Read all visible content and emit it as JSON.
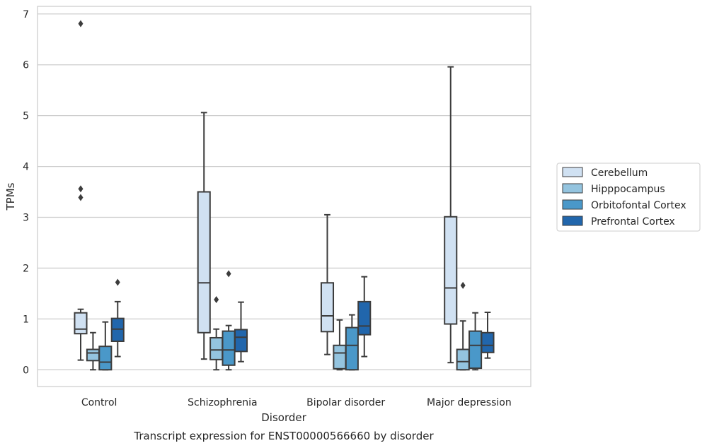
{
  "chart_data": {
    "type": "box",
    "xlabel": "Disorder",
    "ylabel": "TPMs",
    "caption": "Transcript expression for ENST00000566660 by disorder",
    "ylim": [
      -0.33,
      7.15
    ],
    "yticks": [
      0,
      1,
      2,
      3,
      4,
      5,
      6,
      7
    ],
    "grid": "horizontal",
    "legend_position": "right",
    "categories": [
      "Control",
      "Schizophrenia",
      "Bipolar disorder",
      "Major depression"
    ],
    "series": [
      {
        "name": "Cerebellum",
        "color": "#d0e1f2",
        "boxes": [
          {
            "whislo": 0.19,
            "q1": 0.71,
            "med": 0.8,
            "q3": 1.12,
            "whishi": 1.19,
            "fliers": [
              3.39,
              3.56,
              6.81
            ]
          },
          {
            "whislo": 0.21,
            "q1": 0.73,
            "med": 1.71,
            "q3": 3.5,
            "whishi": 5.06,
            "fliers": []
          },
          {
            "whislo": 0.3,
            "q1": 0.75,
            "med": 1.06,
            "q3": 1.71,
            "whishi": 3.05,
            "fliers": []
          },
          {
            "whislo": 0.14,
            "q1": 0.9,
            "med": 1.61,
            "q3": 3.01,
            "whishi": 5.96,
            "fliers": []
          }
        ]
      },
      {
        "name": "Hipppocampus",
        "color": "#94c4df",
        "boxes": [
          {
            "whislo": 0.0,
            "q1": 0.18,
            "med": 0.33,
            "q3": 0.4,
            "whishi": 0.73,
            "fliers": []
          },
          {
            "whislo": 0.0,
            "q1": 0.2,
            "med": 0.39,
            "q3": 0.63,
            "whishi": 0.8,
            "fliers": [
              1.38
            ]
          },
          {
            "whislo": 0.0,
            "q1": 0.02,
            "med": 0.33,
            "q3": 0.48,
            "whishi": 0.98,
            "fliers": []
          },
          {
            "whislo": 0.0,
            "q1": 0.0,
            "med": 0.16,
            "q3": 0.4,
            "whishi": 0.96,
            "fliers": [
              1.66
            ]
          }
        ]
      },
      {
        "name": "Orbitofontal Cortex",
        "color": "#4a98c9",
        "boxes": [
          {
            "whislo": 0.0,
            "q1": 0.0,
            "med": 0.15,
            "q3": 0.46,
            "whishi": 0.94,
            "fliers": []
          },
          {
            "whislo": 0.0,
            "q1": 0.09,
            "med": 0.39,
            "q3": 0.76,
            "whishi": 0.87,
            "fliers": [
              1.89
            ]
          },
          {
            "whislo": 0.0,
            "q1": 0.0,
            "med": 0.48,
            "q3": 0.83,
            "whishi": 1.08,
            "fliers": []
          },
          {
            "whislo": 0.0,
            "q1": 0.03,
            "med": 0.48,
            "q3": 0.76,
            "whishi": 1.12,
            "fliers": []
          }
        ]
      },
      {
        "name": "Prefrontal Cortex",
        "color": "#2166ac",
        "boxes": [
          {
            "whislo": 0.26,
            "q1": 0.56,
            "med": 0.8,
            "q3": 1.01,
            "whishi": 1.34,
            "fliers": [
              1.72
            ]
          },
          {
            "whislo": 0.16,
            "q1": 0.36,
            "med": 0.64,
            "q3": 0.79,
            "whishi": 1.33,
            "fliers": []
          },
          {
            "whislo": 0.26,
            "q1": 0.69,
            "med": 0.86,
            "q3": 1.34,
            "whishi": 1.83,
            "fliers": []
          },
          {
            "whislo": 0.23,
            "q1": 0.34,
            "med": 0.48,
            "q3": 0.73,
            "whishi": 1.13,
            "fliers": []
          }
        ]
      }
    ]
  },
  "colors": {
    "box_edge": "#3c3c3c",
    "grid": "#cccccc",
    "frame": "#cccccc",
    "text": "#262626"
  }
}
